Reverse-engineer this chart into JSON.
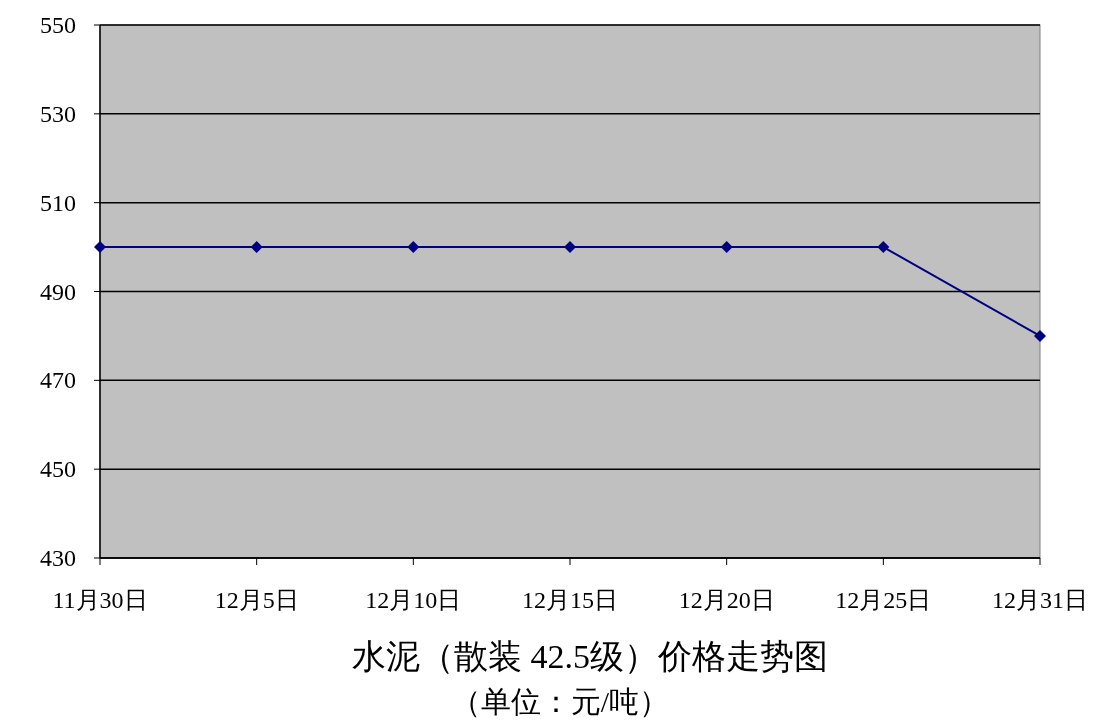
{
  "chart_data": {
    "type": "line",
    "title": "水泥（散装 42.5级）价格走势图",
    "subtitle": "（单位：元/吨）",
    "categories": [
      "11月30日",
      "12月5日",
      "12月10日",
      "12月15日",
      "12月20日",
      "12月25日",
      "12月31日"
    ],
    "series": [
      {
        "color": "#000080",
        "values": [
          500,
          500,
          500,
          500,
          500,
          500,
          480
        ]
      }
    ],
    "ylim": [
      430,
      550
    ],
    "yticks": [
      430,
      450,
      470,
      490,
      510,
      530,
      550
    ],
    "grid": "y",
    "marker": "diamond",
    "line_style": "solid"
  }
}
